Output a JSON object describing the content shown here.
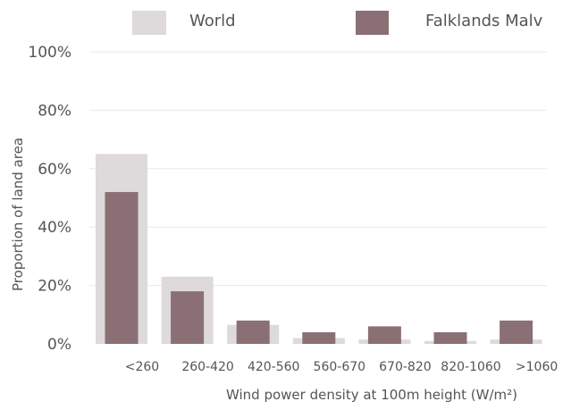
{
  "chart_data": {
    "type": "bar",
    "categories": [
      "<260",
      "260-420",
      "420-560",
      "560-670",
      "670-820",
      "820-1060",
      ">1060"
    ],
    "series": [
      {
        "name": "World",
        "values": [
          65,
          23,
          6.5,
          2,
          1.5,
          1,
          1.5
        ],
        "color": "#ded9da"
      },
      {
        "name": "Falklands Malv",
        "values": [
          52,
          18,
          8,
          4,
          6,
          4,
          8
        ],
        "color": "#8a7074"
      }
    ],
    "ylabel": "Proportion of land area",
    "xlabel": "Wind power density at 100m height (W/m²)",
    "yticks": [
      "0%",
      "20%",
      "40%",
      "60%",
      "80%",
      "100%"
    ],
    "ylim": [
      0,
      100
    ],
    "grid": true,
    "legend_position": "top"
  }
}
